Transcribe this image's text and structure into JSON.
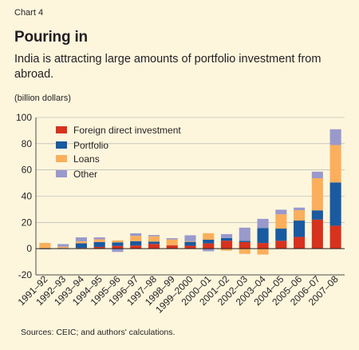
{
  "header": {
    "chart_label": "Chart 4",
    "title": "Pouring in",
    "subtitle": "India is attracting large amounts of portfolio investment from abroad.",
    "unit": "(billion dollars)"
  },
  "footer": {
    "source": "Sources: CEIC; and authors' calculations."
  },
  "colors": {
    "background": "#fdf6dd",
    "plot_background": "#fdf6dd",
    "gridline": "#a9a9a9",
    "fdi": "#d7321e",
    "portfolio": "#1a5aa0",
    "loans": "#fbaf5c",
    "other": "#9999cc"
  },
  "chart_data": {
    "type": "bar",
    "stacked": true,
    "categories": [
      "1991–92",
      "1992–93",
      "1993–94",
      "1994–95",
      "1995–96",
      "1996–97",
      "1997–98",
      "1998–99",
      "1999–2000",
      "2000–01",
      "2001–02",
      "2002–03",
      "2003–04",
      "2004–05",
      "2005–06",
      "2006–07",
      "2007–08"
    ],
    "series": [
      {
        "name": "Foreign direct investment",
        "color": "#d7321e",
        "values": [
          0.1,
          0.3,
          0.6,
          1.3,
          2.1,
          2.4,
          3.6,
          2.5,
          2.2,
          4.0,
          6.1,
          5.0,
          4.3,
          6.0,
          8.9,
          22.1,
          17.5
        ]
      },
      {
        "name": "Portfolio",
        "color": "#1a5aa0",
        "values": [
          0.0,
          0.2,
          3.5,
          3.8,
          2.7,
          3.3,
          1.8,
          -0.1,
          3.0,
          2.8,
          2.0,
          1.0,
          11.4,
          9.3,
          12.5,
          7.1,
          33.0
        ]
      },
      {
        "name": "Loans",
        "color": "#fbaf5c",
        "values": [
          4.3,
          1.0,
          1.5,
          2.0,
          1.5,
          4.0,
          4.0,
          4.5,
          0.5,
          5.0,
          -1.5,
          -4.0,
          -4.5,
          10.9,
          7.9,
          24.5,
          28.5
        ]
      },
      {
        "name": "Other",
        "color": "#9999cc",
        "values": [
          -0.5,
          2.0,
          3.0,
          1.5,
          -2.5,
          2.0,
          1.0,
          1.0,
          4.5,
          -2.0,
          3.0,
          10.0,
          7.0,
          3.5,
          2.0,
          5.0,
          12.0
        ]
      }
    ],
    "ylim": [
      -20,
      100
    ],
    "yticks": [
      -20,
      0,
      20,
      40,
      60,
      80,
      100
    ],
    "grid": true,
    "legend_position": "top-left"
  }
}
